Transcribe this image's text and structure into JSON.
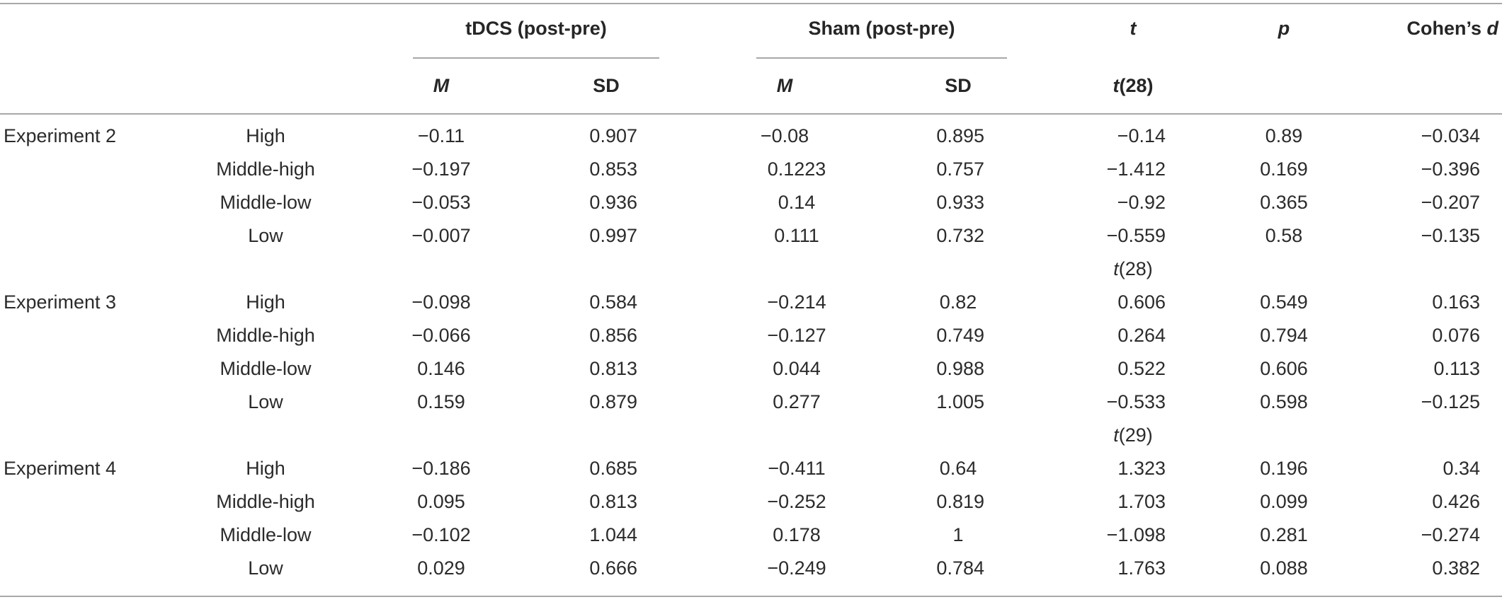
{
  "header": {
    "tdcs_label": "tDCS (post-pre)",
    "sham_label": "Sham (post-pre)",
    "t_label": "t",
    "p_label": "p",
    "d_label_prefix": "Cohen’s ",
    "d_label_italic": "d",
    "m_label": "M",
    "sd_label": "SD",
    "df_label_t": "t",
    "df_label_rest": "(28)"
  },
  "groups": [
    {
      "name": "Experiment 2",
      "rows": [
        {
          "level": "High",
          "tdcs_m": "−0.11",
          "tdcs_sd": "0.907",
          "sham_m": "−0.08",
          "sham_sd": "0.895",
          "t": "−0.14",
          "p": "0.89",
          "d": "−0.034"
        },
        {
          "level": "Middle-high",
          "tdcs_m": "−0.197",
          "tdcs_sd": "0.853",
          "sham_m": "0.1223",
          "sham_sd": "0.757",
          "t": "−1.412",
          "p": "0.169",
          "d": "−0.396"
        },
        {
          "level": "Middle-low",
          "tdcs_m": "−0.053",
          "tdcs_sd": "0.936",
          "sham_m": "0.14",
          "sham_sd": "0.933",
          "t": "−0.92",
          "p": "0.365",
          "d": "−0.207"
        },
        {
          "level": "Low",
          "tdcs_m": "−0.007",
          "tdcs_sd": "0.997",
          "sham_m": "0.111",
          "sham_sd": "0.732",
          "t": "−0.559",
          "p": "0.58",
          "d": "−0.135"
        }
      ]
    },
    {
      "name": "Experiment 3",
      "df_t": "t",
      "df_rest": "(28)",
      "rows": [
        {
          "level": "High",
          "tdcs_m": "−0.098",
          "tdcs_sd": "0.584",
          "sham_m": "−0.214",
          "sham_sd": "0.82",
          "t": "0.606",
          "p": "0.549",
          "d": "0.163"
        },
        {
          "level": "Middle-high",
          "tdcs_m": "−0.066",
          "tdcs_sd": "0.856",
          "sham_m": "−0.127",
          "sham_sd": "0.749",
          "t": "0.264",
          "p": "0.794",
          "d": "0.076"
        },
        {
          "level": "Middle-low",
          "tdcs_m": "0.146",
          "tdcs_sd": "0.813",
          "sham_m": "0.044",
          "sham_sd": "0.988",
          "t": "0.522",
          "p": "0.606",
          "d": "0.113"
        },
        {
          "level": "Low",
          "tdcs_m": "0.159",
          "tdcs_sd": "0.879",
          "sham_m": "0.277",
          "sham_sd": "1.005",
          "t": "−0.533",
          "p": "0.598",
          "d": "−0.125"
        }
      ]
    },
    {
      "name": "Experiment 4",
      "df_t": "t",
      "df_rest": "(29)",
      "rows": [
        {
          "level": "High",
          "tdcs_m": "−0.186",
          "tdcs_sd": "0.685",
          "sham_m": "−0.411",
          "sham_sd": "0.64",
          "t": "1.323",
          "p": "0.196",
          "d": "0.34"
        },
        {
          "level": "Middle-high",
          "tdcs_m": "0.095",
          "tdcs_sd": "0.813",
          "sham_m": "−0.252",
          "sham_sd": "0.819",
          "t": "1.703",
          "p": "0.099",
          "d": "0.426"
        },
        {
          "level": "Middle-low",
          "tdcs_m": "−0.102",
          "tdcs_sd": "1.044",
          "sham_m": "0.178",
          "sham_sd": "1",
          "t": "−1.098",
          "p": "0.281",
          "d": "−0.274"
        },
        {
          "level": "Low",
          "tdcs_m": "0.029",
          "tdcs_sd": "0.666",
          "sham_m": "−0.249",
          "sham_sd": "0.784",
          "t": "1.763",
          "p": "0.088",
          "d": "0.382"
        }
      ]
    }
  ]
}
